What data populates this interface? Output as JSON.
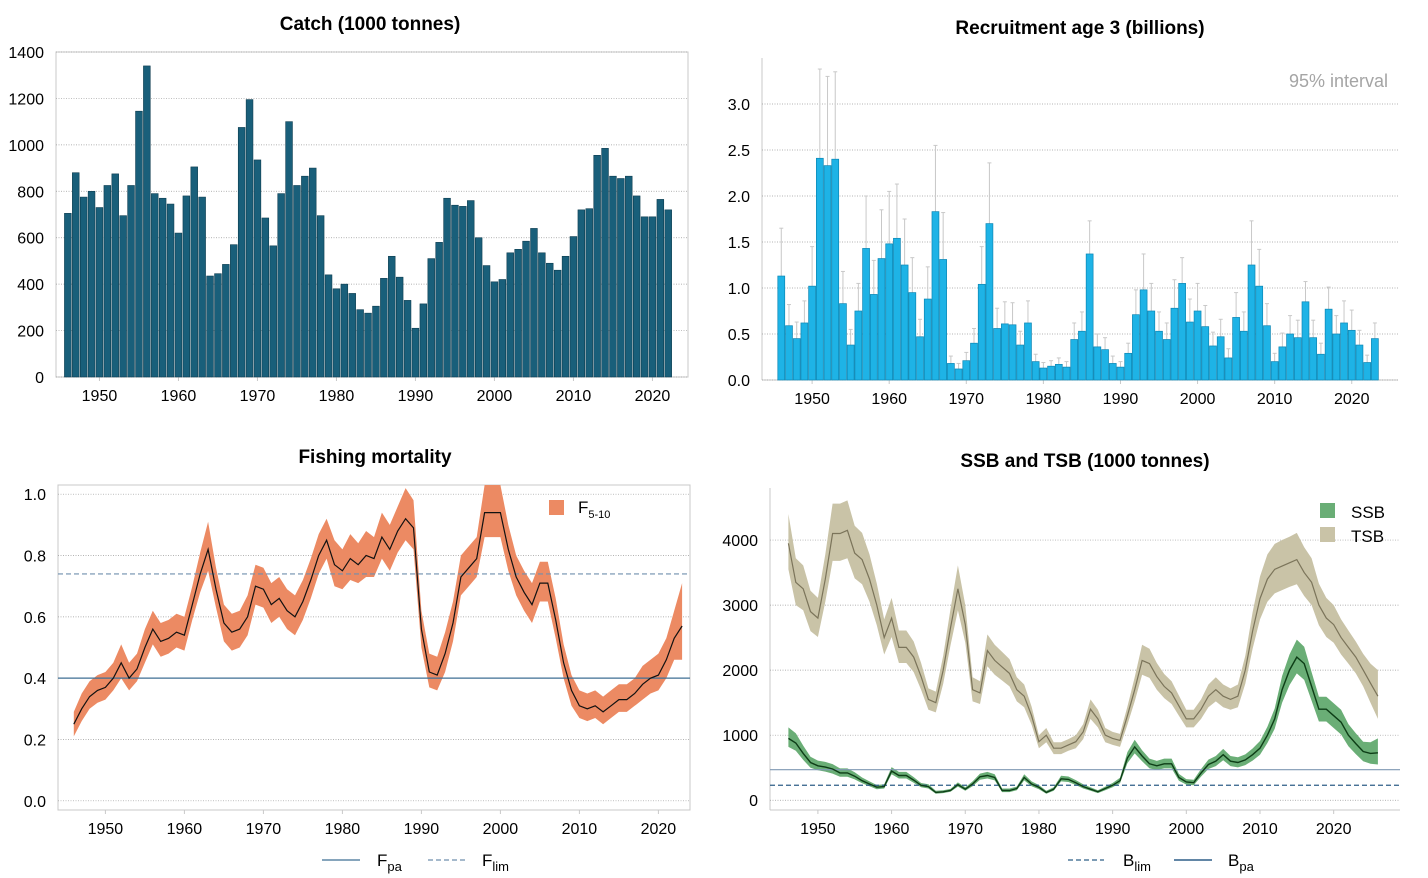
{
  "colors": {
    "catch_bar": "#195f7a",
    "recruit_bar": "#1eb3e6",
    "recruit_edge": "#0c86b4",
    "error_bar": "#c8c8c8",
    "f_band": "#ec8a63",
    "ssb_band": "#6aae76",
    "tsb_band": "#c9c3a7",
    "ssb_line": "#0d3d16",
    "tsb_line": "#7b745a",
    "ref_line": "#3f6f94",
    "grid": "#9a9a9a"
  },
  "chart_data": [
    {
      "id": "catch",
      "type": "bar",
      "title": "Catch (1000 tonnes)",
      "xlabel": "",
      "ylabel": "",
      "xlim": [
        1944.5,
        2024.5
      ],
      "ylim": [
        0,
        1400
      ],
      "yticks": [
        0,
        200,
        400,
        600,
        800,
        1000,
        1200,
        1400
      ],
      "xticks": [
        1950,
        1960,
        1970,
        1980,
        1990,
        2000,
        2010,
        2020
      ],
      "years_start": 1946,
      "values": [
        705,
        880,
        775,
        800,
        730,
        825,
        875,
        695,
        825,
        1145,
        1340,
        790,
        770,
        745,
        620,
        780,
        905,
        775,
        435,
        445,
        485,
        570,
        1075,
        1195,
        935,
        685,
        565,
        790,
        1100,
        825,
        865,
        900,
        695,
        440,
        380,
        400,
        360,
        290,
        275,
        305,
        425,
        520,
        430,
        330,
        210,
        315,
        510,
        580,
        770,
        740,
        735,
        760,
        600,
        480,
        410,
        420,
        535,
        550,
        585,
        640,
        535,
        490,
        460,
        520,
        605,
        720,
        725,
        955,
        985,
        865,
        855,
        865,
        780,
        690,
        690,
        765,
        720
      ]
    },
    {
      "id": "recruitment",
      "type": "bar",
      "title": "Recruitment age 3 (billions)",
      "annotation": "95% interval",
      "xlabel": "",
      "ylabel": "",
      "xlim": [
        1943.5,
        2026
      ],
      "ylim": [
        0,
        3.5
      ],
      "yticks": [
        "0.0",
        "0.5",
        "1.0",
        "1.5",
        "2.0",
        "2.5",
        "3.0"
      ],
      "xticks": [
        1950,
        1960,
        1970,
        1980,
        1990,
        2000,
        2010,
        2020
      ],
      "years_start": 1946,
      "values": [
        1.13,
        0.59,
        0.45,
        0.62,
        1.02,
        2.41,
        2.33,
        2.4,
        0.83,
        0.38,
        0.75,
        1.43,
        0.93,
        1.32,
        1.48,
        1.54,
        1.25,
        0.95,
        0.47,
        0.88,
        1.83,
        1.31,
        0.18,
        0.12,
        0.21,
        0.4,
        1.04,
        1.7,
        0.56,
        0.61,
        0.6,
        0.38,
        0.62,
        0.2,
        0.13,
        0.15,
        0.17,
        0.14,
        0.44,
        0.53,
        1.37,
        0.36,
        0.33,
        0.18,
        0.14,
        0.29,
        0.71,
        0.98,
        0.75,
        0.53,
        0.44,
        0.78,
        1.05,
        0.63,
        0.75,
        0.58,
        0.37,
        0.47,
        0.24,
        0.68,
        0.53,
        1.25,
        1.02,
        0.59,
        0.2,
        0.36,
        0.5,
        0.46,
        0.85,
        0.46,
        0.28,
        0.77,
        0.5,
        0.62,
        0.54,
        0.38,
        0.19,
        0.45
      ],
      "upper": [
        1.65,
        0.82,
        0.63,
        0.86,
        1.45,
        3.38,
        3.3,
        3.35,
        1.18,
        0.55,
        1.05,
        2.0,
        1.3,
        1.85,
        2.05,
        2.13,
        1.75,
        1.33,
        0.66,
        1.23,
        2.55,
        1.82,
        0.26,
        0.18,
        0.3,
        0.56,
        1.45,
        2.36,
        0.78,
        0.85,
        0.84,
        0.53,
        0.86,
        0.28,
        0.19,
        0.21,
        0.24,
        0.2,
        0.62,
        0.74,
        1.73,
        0.5,
        0.46,
        0.26,
        0.2,
        0.4,
        0.98,
        1.37,
        1.05,
        0.74,
        0.62,
        1.09,
        1.33,
        0.88,
        1.05,
        0.81,
        0.52,
        0.66,
        0.34,
        0.95,
        0.74,
        1.73,
        1.42,
        0.83,
        0.29,
        0.51,
        0.7,
        0.65,
        1.07,
        0.65,
        0.4,
        1.01,
        0.7,
        0.86,
        0.76,
        0.54,
        0.27,
        0.62
      ]
    },
    {
      "id": "fishing_mortality",
      "type": "area",
      "title": "Fishing mortality",
      "xlabel": "",
      "ylabel": "",
      "xlim": [
        1944,
        2024
      ],
      "ylim": [
        -0.03,
        1.03
      ],
      "yticks": [
        "0.0",
        "0.2",
        "0.4",
        "0.6",
        "0.8",
        "1.0"
      ],
      "xticks": [
        1950,
        1960,
        1970,
        1980,
        1990,
        2000,
        2010,
        2020
      ],
      "years_start": 1946,
      "series": [
        {
          "name": "F",
          "subscript": "5-10",
          "values": [
            0.25,
            0.3,
            0.34,
            0.36,
            0.37,
            0.4,
            0.45,
            0.4,
            0.43,
            0.5,
            0.56,
            0.52,
            0.53,
            0.55,
            0.54,
            0.64,
            0.74,
            0.82,
            0.69,
            0.58,
            0.55,
            0.56,
            0.6,
            0.7,
            0.69,
            0.64,
            0.66,
            0.62,
            0.6,
            0.65,
            0.72,
            0.8,
            0.85,
            0.77,
            0.75,
            0.79,
            0.77,
            0.8,
            0.79,
            0.86,
            0.82,
            0.88,
            0.92,
            0.89,
            0.56,
            0.42,
            0.41,
            0.48,
            0.58,
            0.73,
            0.76,
            0.79,
            0.94,
            0.94,
            0.94,
            0.82,
            0.73,
            0.68,
            0.64,
            0.71,
            0.71,
            0.59,
            0.45,
            0.36,
            0.31,
            0.3,
            0.31,
            0.29,
            0.31,
            0.33,
            0.33,
            0.35,
            0.38,
            0.4,
            0.41,
            0.46,
            0.53,
            0.57
          ],
          "lower": [
            0.21,
            0.26,
            0.3,
            0.32,
            0.33,
            0.36,
            0.4,
            0.36,
            0.39,
            0.45,
            0.51,
            0.47,
            0.48,
            0.5,
            0.49,
            0.59,
            0.68,
            0.75,
            0.63,
            0.52,
            0.49,
            0.5,
            0.54,
            0.64,
            0.63,
            0.58,
            0.6,
            0.56,
            0.54,
            0.59,
            0.66,
            0.74,
            0.79,
            0.7,
            0.69,
            0.72,
            0.71,
            0.73,
            0.73,
            0.79,
            0.75,
            0.81,
            0.85,
            0.82,
            0.5,
            0.37,
            0.36,
            0.42,
            0.52,
            0.67,
            0.7,
            0.73,
            0.86,
            0.86,
            0.86,
            0.75,
            0.67,
            0.62,
            0.58,
            0.65,
            0.65,
            0.53,
            0.4,
            0.31,
            0.27,
            0.26,
            0.27,
            0.25,
            0.27,
            0.29,
            0.29,
            0.31,
            0.33,
            0.35,
            0.36,
            0.4,
            0.46,
            0.46
          ],
          "upper": [
            0.29,
            0.35,
            0.39,
            0.41,
            0.42,
            0.45,
            0.51,
            0.45,
            0.48,
            0.56,
            0.62,
            0.58,
            0.59,
            0.61,
            0.6,
            0.7,
            0.81,
            0.91,
            0.76,
            0.64,
            0.61,
            0.62,
            0.67,
            0.77,
            0.76,
            0.71,
            0.73,
            0.69,
            0.67,
            0.72,
            0.79,
            0.87,
            0.92,
            0.85,
            0.82,
            0.87,
            0.84,
            0.88,
            0.86,
            0.94,
            0.9,
            0.96,
            1.02,
            0.98,
            0.62,
            0.48,
            0.47,
            0.55,
            0.65,
            0.8,
            0.83,
            0.86,
            1.03,
            1.03,
            1.03,
            0.9,
            0.8,
            0.75,
            0.71,
            0.78,
            0.78,
            0.66,
            0.51,
            0.41,
            0.36,
            0.35,
            0.36,
            0.34,
            0.36,
            0.38,
            0.38,
            0.4,
            0.44,
            0.46,
            0.48,
            0.53,
            0.62,
            0.71
          ]
        }
      ],
      "reference_lines": [
        {
          "name": "F",
          "subscript": "pa",
          "value": 0.4,
          "style": "solid"
        },
        {
          "name": "F",
          "subscript": "lim",
          "value": 0.74,
          "style": "dashed"
        }
      ]
    },
    {
      "id": "ssb_tsb",
      "type": "area",
      "title": "SSB and TSB (1000 tonnes)",
      "xlabel": "",
      "ylabel": "",
      "xlim": [
        1943.5,
        2029
      ],
      "ylim": [
        -150,
        4800
      ],
      "yticks": [
        0,
        1000,
        2000,
        3000,
        4000
      ],
      "xticks": [
        1950,
        1960,
        1970,
        1980,
        1990,
        2000,
        2010,
        2020
      ],
      "years_start": 1946,
      "series": [
        {
          "name": "SSB",
          "values": [
            950,
            880,
            720,
            580,
            530,
            510,
            480,
            420,
            420,
            370,
            300,
            250,
            200,
            210,
            450,
            380,
            380,
            310,
            230,
            210,
            120,
            130,
            150,
            240,
            170,
            250,
            360,
            380,
            350,
            150,
            150,
            180,
            350,
            250,
            200,
            120,
            170,
            330,
            320,
            270,
            210,
            170,
            130,
            180,
            230,
            300,
            650,
            820,
            680,
            560,
            530,
            560,
            560,
            350,
            280,
            270,
            420,
            550,
            600,
            700,
            600,
            580,
            620,
            700,
            800,
            1000,
            1250,
            1700,
            2000,
            2200,
            2100,
            1750,
            1400,
            1400,
            1300,
            1200,
            1000,
            870,
            750,
            720,
            730
          ],
          "lower": [
            820,
            760,
            620,
            500,
            460,
            440,
            410,
            360,
            360,
            320,
            260,
            215,
            170,
            180,
            400,
            335,
            335,
            270,
            200,
            180,
            100,
            110,
            130,
            210,
            145,
            215,
            315,
            335,
            305,
            125,
            125,
            155,
            305,
            215,
            170,
            100,
            145,
            290,
            280,
            235,
            180,
            145,
            110,
            155,
            200,
            260,
            570,
            720,
            600,
            490,
            465,
            490,
            490,
            300,
            240,
            230,
            365,
            480,
            525,
            615,
            525,
            505,
            540,
            610,
            700,
            880,
            1100,
            1500,
            1770,
            1950,
            1850,
            1530,
            1210,
            1210,
            1110,
            1010,
            830,
            710,
            600,
            560,
            550
          ],
          "upper": [
            1120,
            1030,
            840,
            670,
            610,
            590,
            555,
            490,
            490,
            430,
            350,
            290,
            235,
            245,
            510,
            435,
            435,
            355,
            265,
            245,
            145,
            155,
            175,
            275,
            200,
            290,
            410,
            435,
            400,
            180,
            180,
            210,
            400,
            290,
            235,
            145,
            200,
            375,
            365,
            310,
            245,
            200,
            155,
            210,
            265,
            345,
            740,
            930,
            770,
            640,
            605,
            640,
            640,
            405,
            325,
            315,
            480,
            625,
            680,
            790,
            680,
            660,
            705,
            795,
            910,
            1130,
            1410,
            1910,
            2240,
            2470,
            2360,
            1970,
            1590,
            1590,
            1490,
            1390,
            1170,
            1030,
            900,
            890,
            950
          ]
        },
        {
          "name": "TSB",
          "values": [
            3950,
            3350,
            3250,
            2900,
            2800,
            3400,
            4100,
            4100,
            4150,
            3800,
            3700,
            3400,
            3000,
            2500,
            2800,
            2350,
            2350,
            2200,
            1900,
            1550,
            1500,
            2000,
            2650,
            3250,
            2700,
            1700,
            1650,
            2300,
            2150,
            2050,
            1950,
            1700,
            1600,
            1300,
            900,
            1000,
            800,
            800,
            850,
            900,
            1050,
            1400,
            1250,
            1000,
            950,
            920,
            1300,
            1700,
            2150,
            2100,
            1900,
            1750,
            1650,
            1450,
            1250,
            1250,
            1400,
            1600,
            1700,
            1600,
            1550,
            1600,
            2000,
            2600,
            3100,
            3400,
            3550,
            3600,
            3650,
            3700,
            3500,
            3350,
            3000,
            2800,
            2700,
            2500,
            2350,
            2200,
            2000,
            1800,
            1600
          ],
          "lower": [
            3550,
            3000,
            2920,
            2600,
            2510,
            3050,
            3680,
            3680,
            3720,
            3410,
            3320,
            3050,
            2690,
            2240,
            2510,
            2110,
            2110,
            1970,
            1700,
            1390,
            1350,
            1790,
            2380,
            2920,
            2420,
            1520,
            1480,
            2060,
            1930,
            1840,
            1750,
            1520,
            1430,
            1160,
            800,
            890,
            710,
            710,
            760,
            800,
            940,
            1250,
            1120,
            890,
            850,
            820,
            1160,
            1520,
            1930,
            1880,
            1700,
            1570,
            1480,
            1300,
            1120,
            1120,
            1250,
            1430,
            1520,
            1430,
            1390,
            1430,
            1790,
            2330,
            2780,
            3050,
            3180,
            3230,
            3280,
            3320,
            3140,
            3000,
            2690,
            2510,
            2420,
            2240,
            2100,
            1950,
            1750,
            1500,
            1250
          ],
          "upper": [
            4400,
            3720,
            3610,
            3220,
            3110,
            3780,
            4560,
            4560,
            4610,
            4220,
            4110,
            3780,
            3330,
            2780,
            3110,
            2610,
            2610,
            2440,
            2110,
            1720,
            1670,
            2220,
            2940,
            3610,
            3000,
            1890,
            1830,
            2550,
            2390,
            2280,
            2170,
            1890,
            1780,
            1440,
            1000,
            1110,
            890,
            890,
            940,
            1000,
            1170,
            1550,
            1390,
            1110,
            1050,
            1020,
            1440,
            1890,
            2390,
            2330,
            2110,
            1940,
            1830,
            1610,
            1390,
            1390,
            1550,
            1780,
            1890,
            1780,
            1720,
            1780,
            2220,
            2890,
            3440,
            3780,
            3940,
            4000,
            4050,
            4110,
            3890,
            3720,
            3330,
            3110,
            3000,
            2780,
            2610,
            2440,
            2250,
            2100,
            2000
          ]
        }
      ],
      "reference_lines": [
        {
          "name": "B",
          "subscript": "lim",
          "value": 230,
          "style": "dashed"
        },
        {
          "name": "B",
          "subscript": "pa",
          "value": 470,
          "style": "solid"
        }
      ]
    }
  ]
}
